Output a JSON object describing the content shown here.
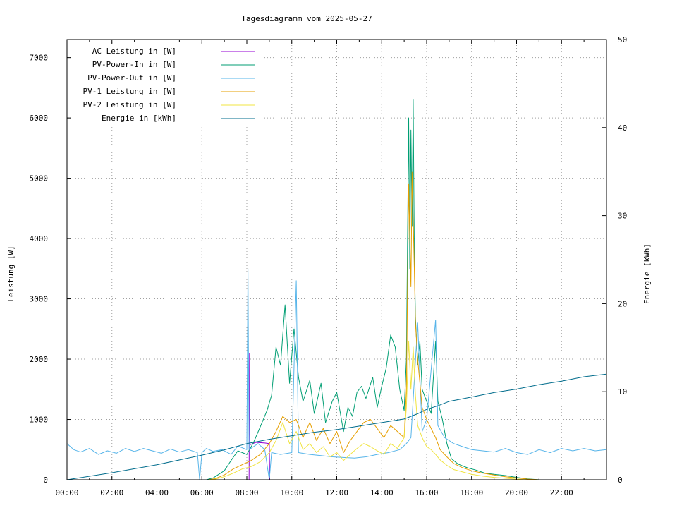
{
  "chart_data": {
    "type": "line",
    "title": "Tagesdiagramm vom 2025-05-27",
    "ylabel": "Leistung [W]",
    "y2label": "Energie [kWh]",
    "xlabel": "",
    "xlim": [
      0,
      24
    ],
    "ylim": [
      0,
      7300
    ],
    "y2lim": [
      0,
      50
    ],
    "x_tick_labels": [
      "00:00",
      "02:00",
      "04:00",
      "06:00",
      "08:00",
      "10:00",
      "12:00",
      "14:00",
      "16:00",
      "18:00",
      "20:00",
      "22:00"
    ],
    "y_tick_values": [
      0,
      1000,
      2000,
      3000,
      4000,
      5000,
      6000,
      7000
    ],
    "y2_tick_values": [
      0,
      10,
      20,
      30,
      40,
      50
    ],
    "grid": true,
    "legend_position": "top-left",
    "series": [
      {
        "name": "AC Leistung in [W]",
        "color": "#9400d3",
        "axis": "left",
        "points": [
          [
            8.1,
            0
          ],
          [
            8.12,
            2100
          ],
          [
            8.14,
            580
          ],
          [
            8.4,
            620
          ],
          [
            8.8,
            610
          ],
          [
            9.0,
            600
          ],
          [
            9.02,
            0
          ]
        ]
      },
      {
        "name": "PV-Power-In in [W]",
        "color": "#009e73",
        "axis": "left",
        "points": [
          [
            0,
            0
          ],
          [
            6.2,
            0
          ],
          [
            6.5,
            30
          ],
          [
            7.0,
            150
          ],
          [
            7.3,
            320
          ],
          [
            7.6,
            480
          ],
          [
            8.0,
            420
          ],
          [
            8.3,
            620
          ],
          [
            8.6,
            880
          ],
          [
            8.9,
            1150
          ],
          [
            9.1,
            1400
          ],
          [
            9.3,
            2200
          ],
          [
            9.5,
            1900
          ],
          [
            9.7,
            2900
          ],
          [
            9.9,
            1600
          ],
          [
            10.1,
            2500
          ],
          [
            10.3,
            1700
          ],
          [
            10.5,
            1300
          ],
          [
            10.8,
            1650
          ],
          [
            11.0,
            1100
          ],
          [
            11.3,
            1600
          ],
          [
            11.5,
            950
          ],
          [
            11.8,
            1300
          ],
          [
            12.0,
            1450
          ],
          [
            12.3,
            800
          ],
          [
            12.5,
            1200
          ],
          [
            12.7,
            1050
          ],
          [
            12.9,
            1450
          ],
          [
            13.1,
            1550
          ],
          [
            13.3,
            1350
          ],
          [
            13.6,
            1700
          ],
          [
            13.8,
            1200
          ],
          [
            14.0,
            1550
          ],
          [
            14.2,
            1850
          ],
          [
            14.4,
            2400
          ],
          [
            14.6,
            2200
          ],
          [
            14.8,
            1500
          ],
          [
            15.0,
            1150
          ],
          [
            15.1,
            2000
          ],
          [
            15.2,
            6000
          ],
          [
            15.25,
            3500
          ],
          [
            15.3,
            5800
          ],
          [
            15.35,
            4200
          ],
          [
            15.4,
            6300
          ],
          [
            15.45,
            3800
          ],
          [
            15.5,
            2700
          ],
          [
            15.6,
            1900
          ],
          [
            15.7,
            2300
          ],
          [
            15.8,
            1500
          ],
          [
            16.0,
            1300
          ],
          [
            16.2,
            1100
          ],
          [
            16.4,
            2300
          ],
          [
            16.5,
            1300
          ],
          [
            16.7,
            1000
          ],
          [
            16.9,
            600
          ],
          [
            17.1,
            350
          ],
          [
            17.4,
            260
          ],
          [
            17.8,
            200
          ],
          [
            18.2,
            160
          ],
          [
            18.6,
            110
          ],
          [
            19.0,
            90
          ],
          [
            19.5,
            70
          ],
          [
            20.0,
            40
          ],
          [
            20.5,
            15
          ],
          [
            21.0,
            0
          ],
          [
            24,
            0
          ]
        ]
      },
      {
        "name": "PV-Power-Out in [W]",
        "color": "#56b4e9",
        "axis": "left",
        "points": [
          [
            0,
            600
          ],
          [
            0.3,
            500
          ],
          [
            0.6,
            460
          ],
          [
            1.0,
            520
          ],
          [
            1.4,
            420
          ],
          [
            1.8,
            480
          ],
          [
            2.2,
            440
          ],
          [
            2.6,
            520
          ],
          [
            3.0,
            470
          ],
          [
            3.4,
            520
          ],
          [
            3.8,
            480
          ],
          [
            4.2,
            440
          ],
          [
            4.6,
            510
          ],
          [
            5.0,
            460
          ],
          [
            5.4,
            500
          ],
          [
            5.8,
            450
          ],
          [
            5.9,
            0
          ],
          [
            6.0,
            450
          ],
          [
            6.2,
            520
          ],
          [
            6.5,
            470
          ],
          [
            6.9,
            500
          ],
          [
            7.3,
            420
          ],
          [
            7.6,
            560
          ],
          [
            8.0,
            500
          ],
          [
            8.05,
            3500
          ],
          [
            8.1,
            500
          ],
          [
            8.5,
            600
          ],
          [
            8.8,
            500
          ],
          [
            9.0,
            0
          ],
          [
            9.1,
            450
          ],
          [
            9.5,
            420
          ],
          [
            10.0,
            450
          ],
          [
            10.2,
            3300
          ],
          [
            10.3,
            450
          ],
          [
            10.8,
            420
          ],
          [
            11.3,
            400
          ],
          [
            11.8,
            380
          ],
          [
            12.3,
            370
          ],
          [
            12.8,
            360
          ],
          [
            13.3,
            380
          ],
          [
            13.8,
            420
          ],
          [
            14.3,
            450
          ],
          [
            14.8,
            500
          ],
          [
            15.1,
            600
          ],
          [
            15.3,
            700
          ],
          [
            15.6,
            2600
          ],
          [
            15.8,
            800
          ],
          [
            16.0,
            1000
          ],
          [
            16.4,
            2650
          ],
          [
            16.5,
            900
          ],
          [
            16.8,
            700
          ],
          [
            17.2,
            600
          ],
          [
            17.6,
            550
          ],
          [
            18.0,
            500
          ],
          [
            18.5,
            480
          ],
          [
            19.0,
            460
          ],
          [
            19.5,
            520
          ],
          [
            20.0,
            450
          ],
          [
            20.5,
            420
          ],
          [
            21.0,
            500
          ],
          [
            21.5,
            450
          ],
          [
            22.0,
            520
          ],
          [
            22.5,
            480
          ],
          [
            23.0,
            520
          ],
          [
            23.5,
            480
          ],
          [
            24,
            500
          ]
        ]
      },
      {
        "name": "PV-1 Leistung in [W]",
        "color": "#e69f00",
        "axis": "left",
        "points": [
          [
            0,
            0
          ],
          [
            6.3,
            0
          ],
          [
            6.6,
            20
          ],
          [
            7.0,
            80
          ],
          [
            7.4,
            180
          ],
          [
            7.8,
            250
          ],
          [
            8.2,
            320
          ],
          [
            8.6,
            420
          ],
          [
            9.0,
            600
          ],
          [
            9.3,
            800
          ],
          [
            9.6,
            1050
          ],
          [
            9.9,
            950
          ],
          [
            10.2,
            1000
          ],
          [
            10.5,
            700
          ],
          [
            10.8,
            950
          ],
          [
            11.1,
            650
          ],
          [
            11.4,
            850
          ],
          [
            11.7,
            600
          ],
          [
            12.0,
            800
          ],
          [
            12.3,
            450
          ],
          [
            12.6,
            650
          ],
          [
            12.9,
            800
          ],
          [
            13.2,
            950
          ],
          [
            13.5,
            1000
          ],
          [
            13.8,
            850
          ],
          [
            14.1,
            700
          ],
          [
            14.4,
            900
          ],
          [
            14.7,
            800
          ],
          [
            15.0,
            700
          ],
          [
            15.1,
            1500
          ],
          [
            15.2,
            4900
          ],
          [
            15.3,
            3200
          ],
          [
            15.35,
            5100
          ],
          [
            15.45,
            3500
          ],
          [
            15.5,
            2600
          ],
          [
            15.6,
            2000
          ],
          [
            15.8,
            1200
          ],
          [
            16.0,
            1000
          ],
          [
            16.2,
            850
          ],
          [
            16.4,
            700
          ],
          [
            16.6,
            500
          ],
          [
            16.9,
            380
          ],
          [
            17.2,
            270
          ],
          [
            17.6,
            200
          ],
          [
            18.0,
            150
          ],
          [
            18.5,
            110
          ],
          [
            19.0,
            80
          ],
          [
            19.5,
            50
          ],
          [
            20.0,
            30
          ],
          [
            20.5,
            10
          ],
          [
            21.0,
            0
          ],
          [
            24,
            0
          ]
        ]
      },
      {
        "name": "PV-2 Leistung in [W]",
        "color": "#f0e442",
        "axis": "left",
        "points": [
          [
            0,
            0
          ],
          [
            6.3,
            0
          ],
          [
            6.6,
            10
          ],
          [
            7.0,
            50
          ],
          [
            7.4,
            110
          ],
          [
            7.8,
            180
          ],
          [
            8.2,
            220
          ],
          [
            8.6,
            300
          ],
          [
            9.0,
            450
          ],
          [
            9.3,
            650
          ],
          [
            9.6,
            950
          ],
          [
            9.9,
            600
          ],
          [
            10.2,
            800
          ],
          [
            10.5,
            500
          ],
          [
            10.8,
            600
          ],
          [
            11.1,
            450
          ],
          [
            11.4,
            550
          ],
          [
            11.7,
            380
          ],
          [
            12.0,
            450
          ],
          [
            12.3,
            320
          ],
          [
            12.6,
            420
          ],
          [
            12.9,
            520
          ],
          [
            13.2,
            600
          ],
          [
            13.5,
            550
          ],
          [
            13.8,
            480
          ],
          [
            14.1,
            420
          ],
          [
            14.4,
            600
          ],
          [
            14.7,
            520
          ],
          [
            15.0,
            700
          ],
          [
            15.1,
            1200
          ],
          [
            15.2,
            2300
          ],
          [
            15.3,
            1500
          ],
          [
            15.4,
            2200
          ],
          [
            15.5,
            1400
          ],
          [
            15.6,
            900
          ],
          [
            15.8,
            700
          ],
          [
            16.0,
            550
          ],
          [
            16.2,
            500
          ],
          [
            16.4,
            420
          ],
          [
            16.6,
            330
          ],
          [
            16.9,
            240
          ],
          [
            17.2,
            170
          ],
          [
            17.6,
            130
          ],
          [
            18.0,
            90
          ],
          [
            18.5,
            60
          ],
          [
            19.0,
            40
          ],
          [
            19.5,
            25
          ],
          [
            20.0,
            10
          ],
          [
            20.5,
            0
          ],
          [
            24,
            0
          ]
        ]
      },
      {
        "name": "Energie in [kWh]",
        "color": "#006c8c",
        "axis": "right",
        "points": [
          [
            0,
            0
          ],
          [
            2,
            0.8
          ],
          [
            4,
            1.7
          ],
          [
            6,
            2.8
          ],
          [
            7,
            3.4
          ],
          [
            8,
            4.1
          ],
          [
            9,
            4.6
          ],
          [
            10,
            5.0
          ],
          [
            11,
            5.4
          ],
          [
            12,
            5.7
          ],
          [
            13,
            6.1
          ],
          [
            14,
            6.5
          ],
          [
            15,
            6.9
          ],
          [
            15.3,
            7.2
          ],
          [
            15.6,
            7.5
          ],
          [
            16.0,
            8.0
          ],
          [
            16.5,
            8.4
          ],
          [
            17.0,
            8.9
          ],
          [
            18.0,
            9.4
          ],
          [
            19.0,
            9.9
          ],
          [
            20.0,
            10.3
          ],
          [
            21.0,
            10.8
          ],
          [
            22.0,
            11.2
          ],
          [
            23.0,
            11.7
          ],
          [
            24,
            12.0
          ]
        ]
      }
    ]
  }
}
